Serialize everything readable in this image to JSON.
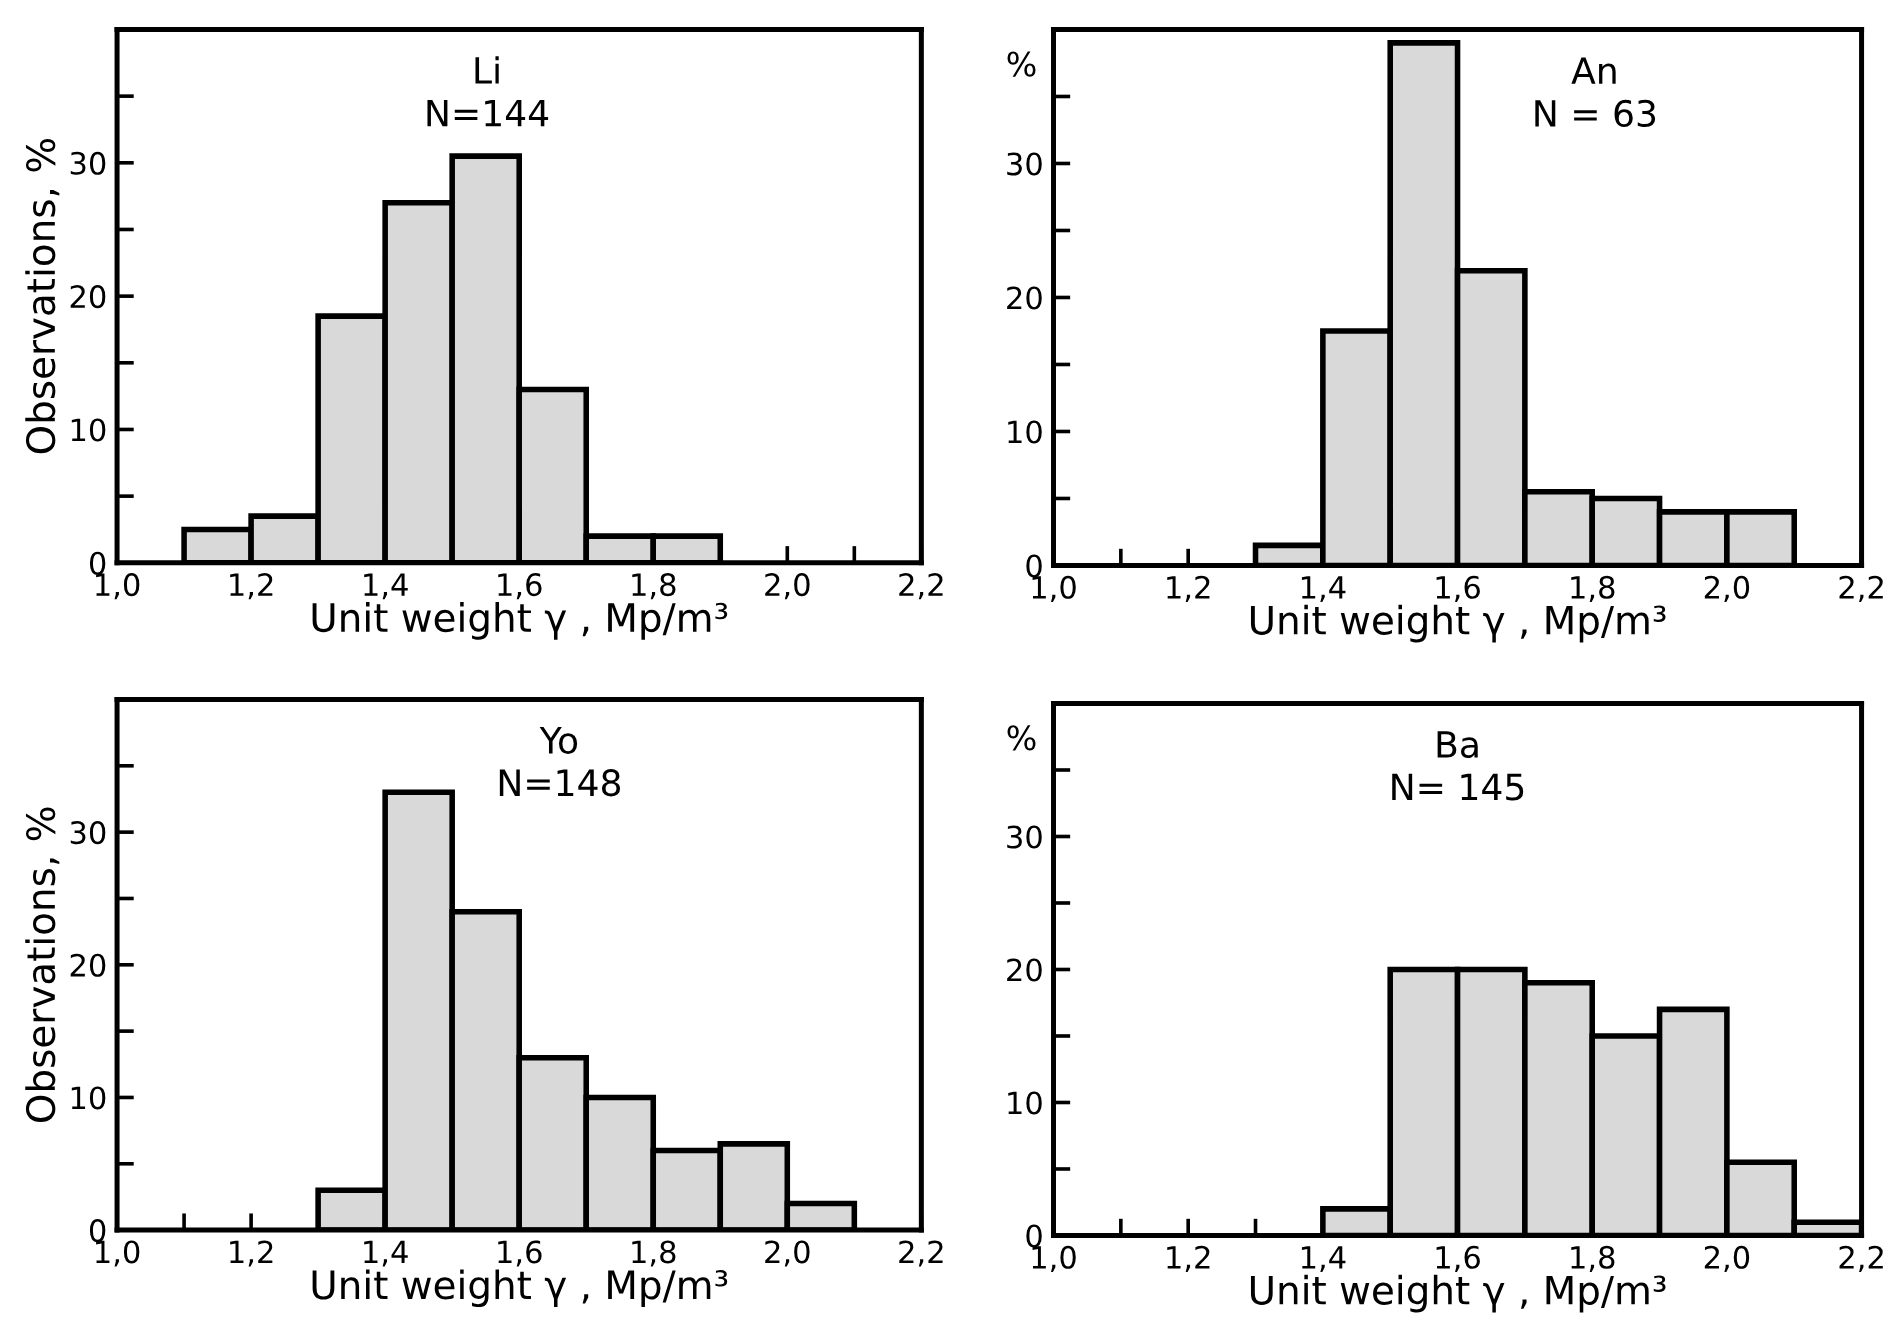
{
  "chart_data": [
    {
      "type": "histogram",
      "title": "Li",
      "subtitle": "N=144",
      "xlabel": "Unit weight γ , Mp/m³",
      "ylabel": "Observations, %",
      "color": "#d9d9d9",
      "bins": [
        1.1,
        1.2,
        1.3,
        1.4,
        1.5,
        1.6,
        1.7,
        1.8,
        1.9
      ],
      "values": [
        2.5,
        3.5,
        18.5,
        27,
        30.5,
        13,
        2,
        2
      ],
      "xlim": [
        1.0,
        2.2
      ],
      "ylim": [
        0,
        40
      ],
      "xticks": [
        {
          "value": 1.0,
          "label": "1,0"
        },
        {
          "value": 1.1,
          "label": null
        },
        {
          "value": 1.2,
          "label": "1,2"
        },
        {
          "value": 1.3,
          "label": null
        },
        {
          "value": 1.4,
          "label": "1,4"
        },
        {
          "value": 1.5,
          "label": null
        },
        {
          "value": 1.6,
          "label": "1,6"
        },
        {
          "value": 1.7,
          "label": null
        },
        {
          "value": 1.8,
          "label": "1,8"
        },
        {
          "value": 1.9,
          "label": null
        },
        {
          "value": 2.0,
          "label": "2,0"
        },
        {
          "value": 2.1,
          "label": null
        },
        {
          "value": 2.2,
          "label": "2,2"
        }
      ],
      "yticks": [
        0,
        {
          "value": 5,
          "label": null
        },
        10,
        {
          "value": 15,
          "label": null
        },
        20,
        {
          "value": 25,
          "label": null
        },
        30,
        {
          "value": 35,
          "label": null
        }
      ],
      "grid": false
    },
    {
      "type": "histogram",
      "title": "An",
      "subtitle": "N = 63",
      "xlabel": "Unit weight γ , Mp/m³",
      "ylabel": "%",
      "color": "#d9d9d9",
      "bins": [
        1.3,
        1.4,
        1.5,
        1.6,
        1.7,
        1.8,
        1.9,
        2.0,
        2.1
      ],
      "values": [
        1.5,
        17.5,
        39,
        22,
        5.5,
        5,
        4,
        4
      ],
      "xlim": [
        1.0,
        2.2
      ],
      "ylim": [
        0,
        40
      ],
      "xticks": [
        {
          "value": 1.0,
          "label": "1,0"
        },
        {
          "value": 1.1,
          "label": null
        },
        {
          "value": 1.2,
          "label": "1,2"
        },
        {
          "value": 1.3,
          "label": null
        },
        {
          "value": 1.4,
          "label": "1,4"
        },
        {
          "value": 1.5,
          "label": null
        },
        {
          "value": 1.6,
          "label": "1,6"
        },
        {
          "value": 1.7,
          "label": null
        },
        {
          "value": 1.8,
          "label": "1,8"
        },
        {
          "value": 1.9,
          "label": null
        },
        {
          "value": 2.0,
          "label": "2,0"
        },
        {
          "value": 2.1,
          "label": null
        },
        {
          "value": 2.2,
          "label": "2,2"
        }
      ],
      "yticks": [
        0,
        {
          "value": 5,
          "label": null
        },
        10,
        {
          "value": 15,
          "label": null
        },
        20,
        {
          "value": 25,
          "label": null
        },
        30,
        {
          "value": 35,
          "label": null
        }
      ],
      "grid": false
    },
    {
      "type": "histogram",
      "title": "Yo",
      "subtitle": "N=148",
      "xlabel": "Unit weight γ , Mp/m³",
      "ylabel": "Observations, %",
      "color": "#d9d9d9",
      "bins": [
        1.3,
        1.4,
        1.5,
        1.6,
        1.7,
        1.8,
        1.9,
        2.0,
        2.1
      ],
      "values": [
        3,
        33,
        24,
        13,
        10,
        6,
        6.5,
        2
      ],
      "xlim": [
        1.0,
        2.2
      ],
      "ylim": [
        0,
        40
      ],
      "xticks": [
        {
          "value": 1.0,
          "label": "1,0"
        },
        {
          "value": 1.1,
          "label": null
        },
        {
          "value": 1.2,
          "label": "1,2"
        },
        {
          "value": 1.3,
          "label": null
        },
        {
          "value": 1.4,
          "label": "1,4"
        },
        {
          "value": 1.5,
          "label": null
        },
        {
          "value": 1.6,
          "label": "1,6"
        },
        {
          "value": 1.7,
          "label": null
        },
        {
          "value": 1.8,
          "label": "1,8"
        },
        {
          "value": 1.9,
          "label": null
        },
        {
          "value": 2.0,
          "label": "2,0"
        },
        {
          "value": 2.1,
          "label": null
        },
        {
          "value": 2.2,
          "label": "2,2"
        }
      ],
      "yticks": [
        0,
        {
          "value": 5,
          "label": null
        },
        10,
        {
          "value": 15,
          "label": null
        },
        20,
        {
          "value": 25,
          "label": null
        },
        30,
        {
          "value": 35,
          "label": null
        }
      ],
      "grid": false
    },
    {
      "type": "histogram",
      "title": "Ba",
      "subtitle": "N= 145",
      "xlabel": "Unit weight γ , Mp/m³",
      "ylabel": "%",
      "color": "#d9d9d9",
      "bins": [
        1.4,
        1.5,
        1.6,
        1.7,
        1.8,
        1.9,
        2.0,
        2.1,
        2.2
      ],
      "values": [
        2,
        20,
        20,
        19,
        15,
        17,
        5.5,
        1
      ],
      "xlim": [
        1.0,
        2.2
      ],
      "ylim": [
        0,
        40
      ],
      "xticks": [
        {
          "value": 1.0,
          "label": "1,0"
        },
        {
          "value": 1.1,
          "label": null
        },
        {
          "value": 1.2,
          "label": "1,2"
        },
        {
          "value": 1.3,
          "label": null
        },
        {
          "value": 1.4,
          "label": "1,4"
        },
        {
          "value": 1.5,
          "label": null
        },
        {
          "value": 1.6,
          "label": "1,6"
        },
        {
          "value": 1.7,
          "label": null
        },
        {
          "value": 1.8,
          "label": "1,8"
        },
        {
          "value": 1.9,
          "label": null
        },
        {
          "value": 2.0,
          "label": "2,0"
        },
        {
          "value": 2.1,
          "label": null
        },
        {
          "value": 2.2,
          "label": "2,2"
        }
      ],
      "yticks": [
        0,
        {
          "value": 5,
          "label": null
        },
        10,
        {
          "value": 15,
          "label": null
        },
        20,
        {
          "value": 25,
          "label": null
        },
        30,
        {
          "value": 35,
          "label": null
        }
      ],
      "grid": false
    }
  ]
}
